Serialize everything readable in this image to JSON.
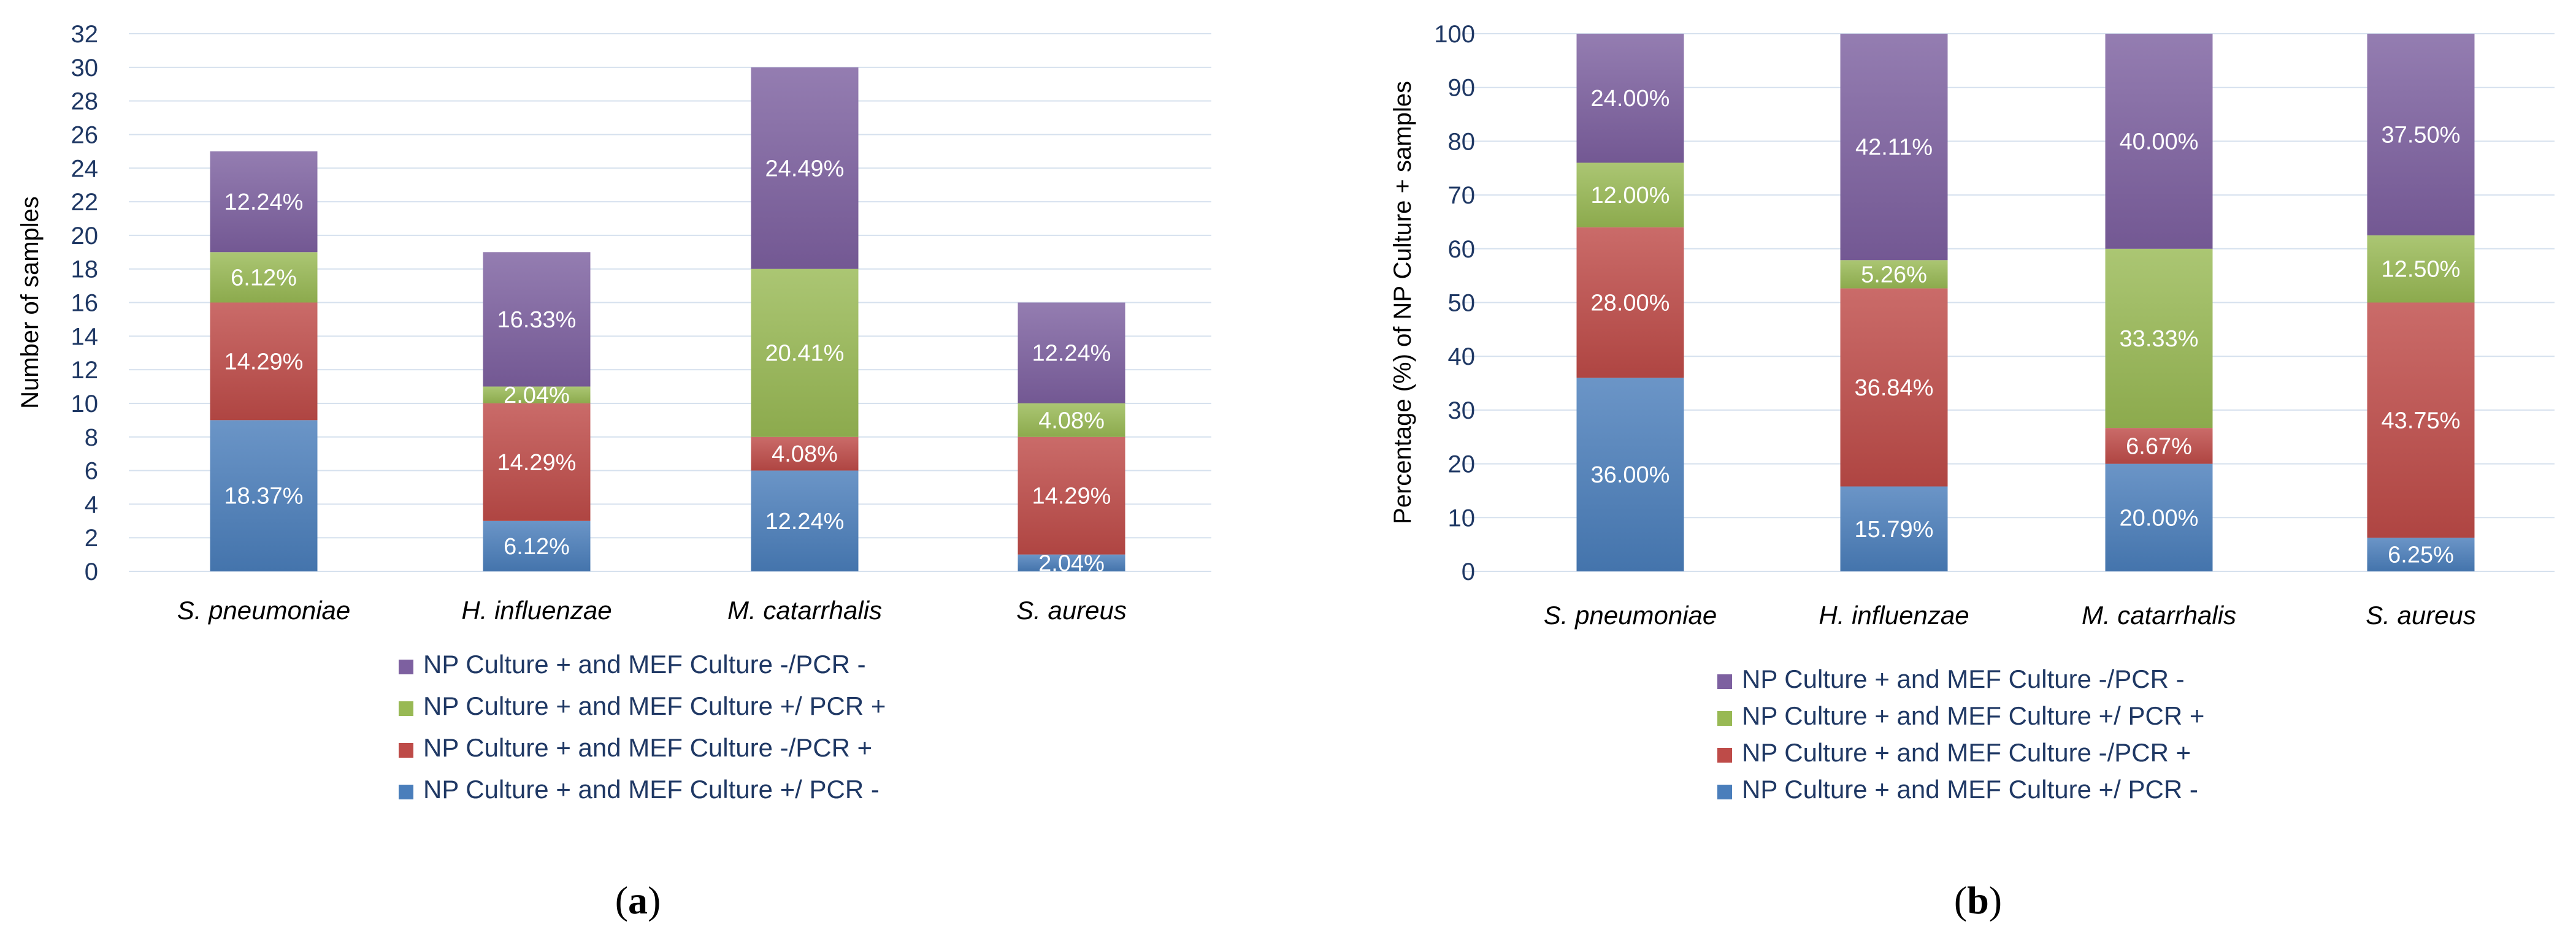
{
  "chart_data": [
    {
      "type": "bar",
      "stacked": true,
      "panel_label": "a",
      "ylabel": "Number of samples",
      "xlabel": "",
      "ylim": [
        0,
        32
      ],
      "yticks": [
        0,
        2,
        4,
        6,
        8,
        10,
        12,
        14,
        16,
        18,
        20,
        22,
        24,
        26,
        28,
        30,
        32
      ],
      "categories": [
        "S. pneumoniae",
        "H. influenzae",
        "M. catarrhalis",
        "S. aureus"
      ],
      "series": [
        {
          "name": "NP Culture + and MEF Culture +/ PCR -",
          "color": "#4a7ebb",
          "values": [
            9,
            3,
            6,
            1
          ],
          "labels": [
            "18.37%",
            "6.12%",
            "12.24%",
            "2.04%"
          ]
        },
        {
          "name": "NP Culture + and MEF Culture -/PCR +",
          "color": "#be4b48",
          "values": [
            7,
            7,
            2,
            7
          ],
          "labels": [
            "14.29%",
            "14.29%",
            "4.08%",
            "14.29%"
          ]
        },
        {
          "name": "NP Culture + and MEF Culture +/ PCR +",
          "color": "#98b954",
          "values": [
            3,
            1,
            10,
            2
          ],
          "labels": [
            "6.12%",
            "2.04%",
            "20.41%",
            "4.08%"
          ]
        },
        {
          "name": "NP Culture + and MEF Culture -/PCR -",
          "color": "#7d60a0",
          "values": [
            6,
            8,
            12,
            6
          ],
          "labels": [
            "12.24%",
            "16.33%",
            "24.49%",
            "12.24%"
          ]
        }
      ],
      "legend_order": [
        3,
        2,
        1,
        0
      ]
    },
    {
      "type": "bar",
      "stacked": true,
      "panel_label": "b",
      "ylabel": "Percentage (%) of NP Culture + samples",
      "xlabel": "",
      "ylim": [
        0,
        100
      ],
      "yticks": [
        0,
        10,
        20,
        30,
        40,
        50,
        60,
        70,
        80,
        90,
        100
      ],
      "categories": [
        "S. pneumoniae",
        "H. influenzae",
        "M. catarrhalis",
        "S. aureus"
      ],
      "series": [
        {
          "name": "NP Culture + and MEF Culture +/ PCR -",
          "color": "#4a7ebb",
          "values": [
            36.0,
            15.79,
            20.0,
            6.25
          ],
          "labels": [
            "36.00%",
            "15.79%",
            "20.00%",
            "6.25%"
          ]
        },
        {
          "name": "NP Culture + and MEF Culture -/PCR +",
          "color": "#be4b48",
          "values": [
            28.0,
            36.84,
            6.67,
            43.75
          ],
          "labels": [
            "28.00%",
            "36.84%",
            "6.67%",
            "43.75%"
          ]
        },
        {
          "name": "NP Culture + and MEF Culture +/ PCR +",
          "color": "#98b954",
          "values": [
            12.0,
            5.26,
            33.33,
            12.5
          ],
          "labels": [
            "12.00%",
            "5.26%",
            "33.33%",
            "12.50%"
          ]
        },
        {
          "name": "NP Culture + and MEF Culture -/PCR -",
          "color": "#7d60a0",
          "values": [
            24.0,
            42.11,
            40.0,
            37.5
          ],
          "labels": [
            "24.00%",
            "42.11%",
            "40.00%",
            "37.50%"
          ]
        }
      ],
      "legend_order": [
        3,
        2,
        1,
        0
      ]
    }
  ]
}
